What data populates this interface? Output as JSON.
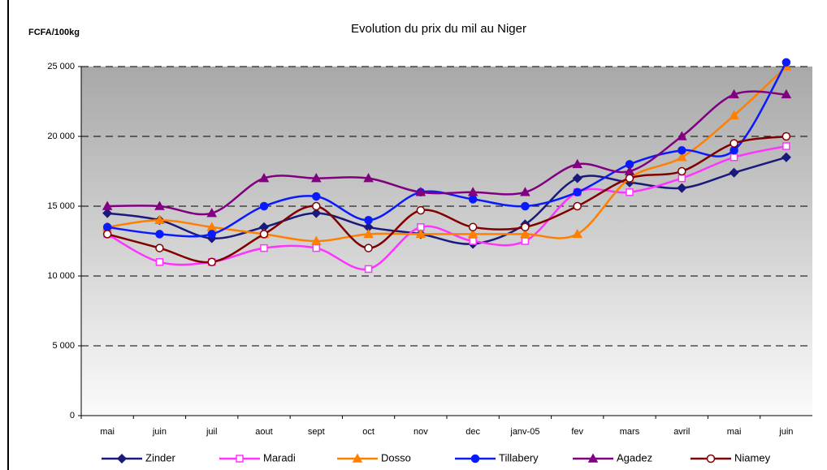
{
  "chart_data": {
    "type": "line",
    "title": "Evolution du prix du mil au Niger",
    "y_label": "FCFA/100kg",
    "categories": [
      "mai",
      "juin",
      "juil",
      "aout",
      "sept",
      "oct",
      "nov",
      "dec",
      "janv-05",
      "fev",
      "mars",
      "avril",
      "mai",
      "juin"
    ],
    "series": [
      {
        "name": "Zinder",
        "color": "#1a1a7a",
        "marker": "diamond",
        "values": [
          14500,
          14000,
          12700,
          13500,
          14500,
          13500,
          13000,
          12300,
          13700,
          17000,
          16700,
          16300,
          17400,
          18500
        ]
      },
      {
        "name": "Maradi",
        "color": "#ff33ff",
        "marker": "open-square",
        "values": [
          13000,
          11000,
          11000,
          12000,
          12000,
          10500,
          13500,
          12500,
          12500,
          16000,
          16000,
          17000,
          18500,
          19300
        ]
      },
      {
        "name": "Dosso",
        "color": "#ff8000",
        "marker": "triangle",
        "values": [
          13500,
          14000,
          13500,
          13000,
          12500,
          13000,
          13000,
          13000,
          13000,
          13000,
          17000,
          18500,
          21500,
          25000
        ]
      },
      {
        "name": "Tillabery",
        "color": "#0a1aff",
        "marker": "circle",
        "values": [
          13500,
          13000,
          13000,
          15000,
          15700,
          14000,
          16000,
          15500,
          15000,
          16000,
          18000,
          19000,
          19000,
          25300
        ]
      },
      {
        "name": "Agadez",
        "color": "#800080",
        "marker": "triangle",
        "values": [
          15000,
          15000,
          14500,
          17000,
          17000,
          17000,
          16000,
          16000,
          16000,
          18000,
          17500,
          20000,
          23000,
          23000
        ]
      },
      {
        "name": "Niamey",
        "color": "#800000",
        "marker": "open-circle",
        "values": [
          13000,
          12000,
          11000,
          13000,
          15000,
          12000,
          14700,
          13500,
          13500,
          15000,
          17000,
          17500,
          19500,
          20000
        ]
      }
    ],
    "ylim": [
      0,
      25000
    ],
    "yticks": [
      0,
      {
        "value": 5000,
        "label": "5 000"
      },
      {
        "value": 10000,
        "label": "10 000"
      },
      {
        "value": 15000,
        "label": "15 000"
      },
      {
        "value": 20000,
        "label": "20 000"
      },
      {
        "value": 25000,
        "label": "25 000"
      }
    ],
    "grid": true
  }
}
